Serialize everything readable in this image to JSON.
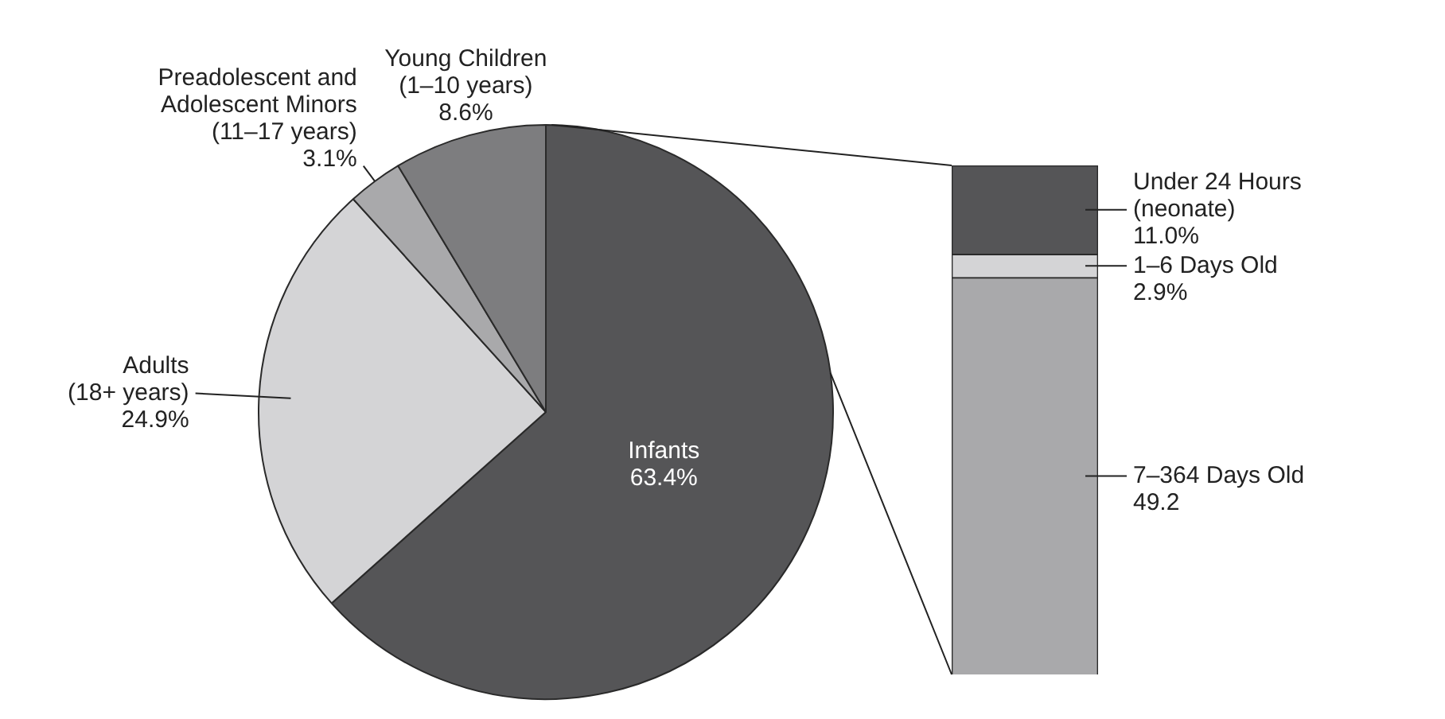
{
  "chart_data": [
    {
      "type": "pie",
      "categories": [
        "Infants",
        "Adults (18+ years)",
        "Preadolescent and Adolescent Minors (11–17 years)",
        "Young Children (1–10 years)"
      ],
      "values": [
        63.4,
        24.9,
        3.1,
        8.6
      ],
      "colors": [
        "#555557",
        "#d4d4d6",
        "#a9a9ab",
        "#7d7d7f"
      ],
      "value_labels": [
        "63.4%",
        "24.9%",
        "3.1%",
        "8.6%"
      ]
    },
    {
      "type": "bar",
      "stacked": true,
      "categories": [
        null
      ],
      "series": [
        {
          "name": "7–364 Days Old",
          "color": "#a9a9ab",
          "values": [
            49.2
          ],
          "value_labels": [
            "49.2"
          ]
        },
        {
          "name": "1–6 Days Old",
          "color": "#d4d4d6",
          "values": [
            2.9
          ],
          "value_labels": [
            "2.9%"
          ]
        },
        {
          "name": "Under 24 Hours (neonate)",
          "color": "#555557",
          "values": [
            11.0
          ],
          "value_labels": [
            "11.0%"
          ]
        }
      ],
      "ylim": [
        0,
        63.1
      ],
      "tick_labels": false
    }
  ]
}
